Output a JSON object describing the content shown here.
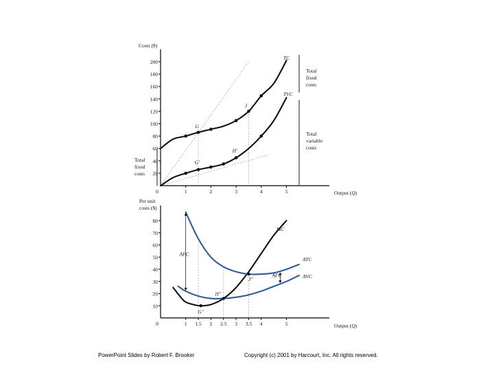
{
  "footer": {
    "left": "PowerPoint Slides by Robert F. Brooker",
    "right": "Copyright (c) 2001 by Harcourt, Inc. All rights reserved."
  },
  "colors": {
    "black_curve": "#111111",
    "blue_curve": "#2e5d9a",
    "guide": "#9a9a9a"
  },
  "chart_data": [
    {
      "type": "line",
      "title": "",
      "ylabel": "Costs ($)",
      "xlabel": "Output (Q)",
      "xlim": [
        0,
        5.6
      ],
      "ylim": [
        0,
        200
      ],
      "xticks": [
        1,
        2,
        3,
        4,
        5
      ],
      "xtick_labels": [
        "1",
        "2",
        "3",
        "4",
        "5"
      ],
      "yticks": [
        20,
        40,
        60,
        80,
        100,
        120,
        140,
        160,
        180,
        200
      ],
      "ytick_labels": [
        "20",
        "40",
        "60",
        "80",
        "100",
        "120",
        "140",
        "160",
        "180",
        "200"
      ],
      "origin_label": "0",
      "series": [
        {
          "name": "TC",
          "label": "TC",
          "x": [
            0,
            0.5,
            1,
            1.5,
            2,
            2.5,
            3,
            3.5,
            4,
            4.5,
            5
          ],
          "y": [
            60,
            75,
            80,
            86,
            91,
            96,
            105,
            120,
            145,
            165,
            202
          ],
          "markers_x": [
            1,
            1.5,
            2,
            3,
            3.5,
            4
          ]
        },
        {
          "name": "TVC",
          "label": "TVC",
          "x": [
            0,
            0.5,
            1,
            1.5,
            2,
            2.5,
            3,
            3.5,
            4,
            4.5,
            5
          ],
          "y": [
            0,
            13,
            20,
            26,
            30,
            35,
            45,
            60,
            80,
            105,
            142
          ],
          "markers_x": [
            1,
            1.5,
            2,
            2.5,
            3,
            4
          ]
        }
      ],
      "point_labels": [
        {
          "text": "G",
          "x": 1.5,
          "series": "TC"
        },
        {
          "text": "J",
          "x": 3.5,
          "series": "TC"
        },
        {
          "text": "G'",
          "x": 1.5,
          "series": "TVC"
        },
        {
          "text": "H'",
          "x": 3,
          "series": "TVC"
        }
      ],
      "annotations": {
        "total_fixed_costs_right": [
          "Total",
          "fixed",
          "costs"
        ],
        "total_variable_costs": [
          "Total",
          "variable",
          "costs"
        ],
        "total_fixed_costs_left": [
          "Total",
          "fixed",
          "costs"
        ]
      },
      "rays": [
        {
          "through": "G",
          "x_to": 3.5,
          "y_to": 200
        },
        {
          "through": "G'",
          "x_to": 4.3,
          "y_to": 50
        }
      ],
      "vertical_guides_x": [
        1.5,
        3.5
      ]
    },
    {
      "type": "line",
      "title": "",
      "ylabel_lines": [
        "Per unit",
        "costs ($)"
      ],
      "xlabel": "Output (Q)",
      "xlim": [
        0,
        5.6
      ],
      "ylim": [
        0,
        90
      ],
      "xticks": [
        1,
        1.5,
        2,
        2.5,
        3,
        3.5,
        4,
        5
      ],
      "xtick_labels": [
        "1",
        "1.5",
        "2",
        "2.5",
        "3",
        "3.5",
        "4",
        "5"
      ],
      "yticks": [
        10,
        20,
        30,
        40,
        50,
        60,
        70,
        80
      ],
      "ytick_labels": [
        "10",
        "20",
        "30",
        "40",
        "50",
        "60",
        "70",
        "80"
      ],
      "origin_label": "0",
      "series": [
        {
          "name": "MC",
          "label": "MC",
          "x": [
            0.5,
            0.8,
            1,
            1.3,
            1.6,
            2,
            2.5,
            3,
            3.5,
            4,
            4.5,
            5
          ],
          "y": [
            25,
            17,
            13,
            11,
            10,
            11,
            16,
            25,
            38,
            53,
            68,
            80
          ]
        },
        {
          "name": "ATC",
          "label": "ATC",
          "x": [
            1,
            1.5,
            2,
            2.5,
            3,
            3.5,
            4,
            4.5,
            5,
            5.5
          ],
          "y": [
            87,
            65,
            50,
            42,
            38,
            36,
            36,
            37,
            40,
            44
          ]
        },
        {
          "name": "AVC",
          "label": "AVC",
          "x": [
            0.7,
            1,
            1.5,
            2,
            2.5,
            3,
            3.5,
            4,
            4.5,
            5,
            5.5
          ],
          "y": [
            26,
            22,
            18,
            16,
            16,
            17,
            19,
            22,
            26,
            30,
            35
          ]
        }
      ],
      "point_labels": [
        {
          "text": "G''",
          "x": 1.6,
          "y": 10
        },
        {
          "text": "H''",
          "x": 2.5,
          "y": 16
        },
        {
          "text": "J''",
          "x": 3.5,
          "y": 36
        }
      ],
      "annotations": [
        {
          "text": "AFC",
          "x": 1,
          "y_from": 22,
          "y_to": 87
        },
        {
          "text": "AFC",
          "x": 4.75,
          "y_from": 28,
          "y_to": 38
        }
      ],
      "vertical_guides_x": [
        1.5,
        2.5,
        3.5
      ]
    }
  ]
}
